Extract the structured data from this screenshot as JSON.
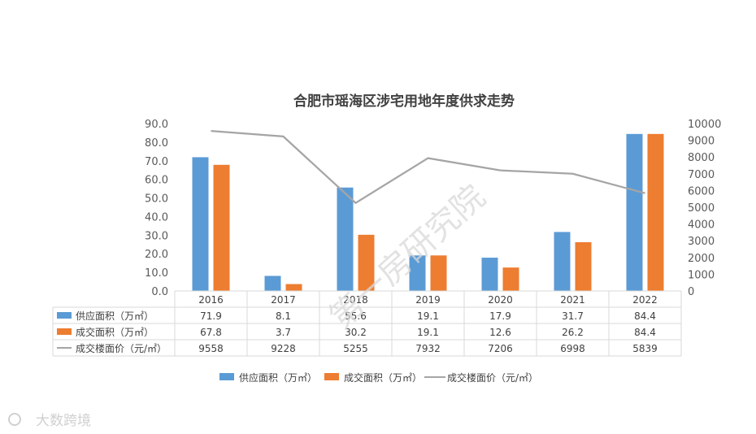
{
  "chart_data": {
    "type": "bar",
    "title": "合肥市瑶海区涉宅用地年度供求走势",
    "categories": [
      "2016",
      "2017",
      "2018",
      "2019",
      "2020",
      "2021",
      "2022"
    ],
    "series": [
      {
        "name": "供应面积（万㎡）",
        "type": "bar",
        "axis": "left",
        "color": "#5b9bd5",
        "values": [
          71.9,
          8.1,
          55.6,
          19.1,
          17.9,
          31.7,
          84.4
        ],
        "display": [
          "71.9",
          "8.1",
          "55.6",
          "19.1",
          "17.9",
          "31.7",
          "84.4"
        ]
      },
      {
        "name": "成交面积（万㎡）",
        "type": "bar",
        "axis": "left",
        "color": "#ed7d31",
        "values": [
          67.8,
          3.7,
          30.2,
          19.1,
          12.6,
          26.2,
          84.4
        ],
        "display": [
          "67.8",
          "3.7",
          "30.2",
          "19.1",
          "12.6",
          "26.2",
          "84.4"
        ]
      },
      {
        "name": "成交楼面价（元/㎡）",
        "type": "line",
        "axis": "right",
        "color": "#a5a5a5",
        "values": [
          9558,
          9228,
          5255,
          7932,
          7206,
          6998,
          5839
        ],
        "display": [
          "9558",
          "9228",
          "5255",
          "7932",
          "7206",
          "6998",
          "5839"
        ]
      }
    ],
    "left_axis": {
      "ticks": [
        "0.0",
        "10.0",
        "20.0",
        "30.0",
        "40.0",
        "50.0",
        "60.0",
        "70.0",
        "80.0",
        "90.0"
      ],
      "ylim": [
        0,
        90
      ]
    },
    "right_axis": {
      "ticks": [
        "0",
        "1000",
        "2000",
        "3000",
        "4000",
        "5000",
        "6000",
        "7000",
        "8000",
        "9000",
        "10000"
      ],
      "ylim": [
        0,
        10000
      ]
    },
    "data_table": true,
    "legend_position": "bottom",
    "grid": false
  },
  "watermark": "第一房研究院",
  "footer": {
    "logo_text": "大数跨境"
  }
}
